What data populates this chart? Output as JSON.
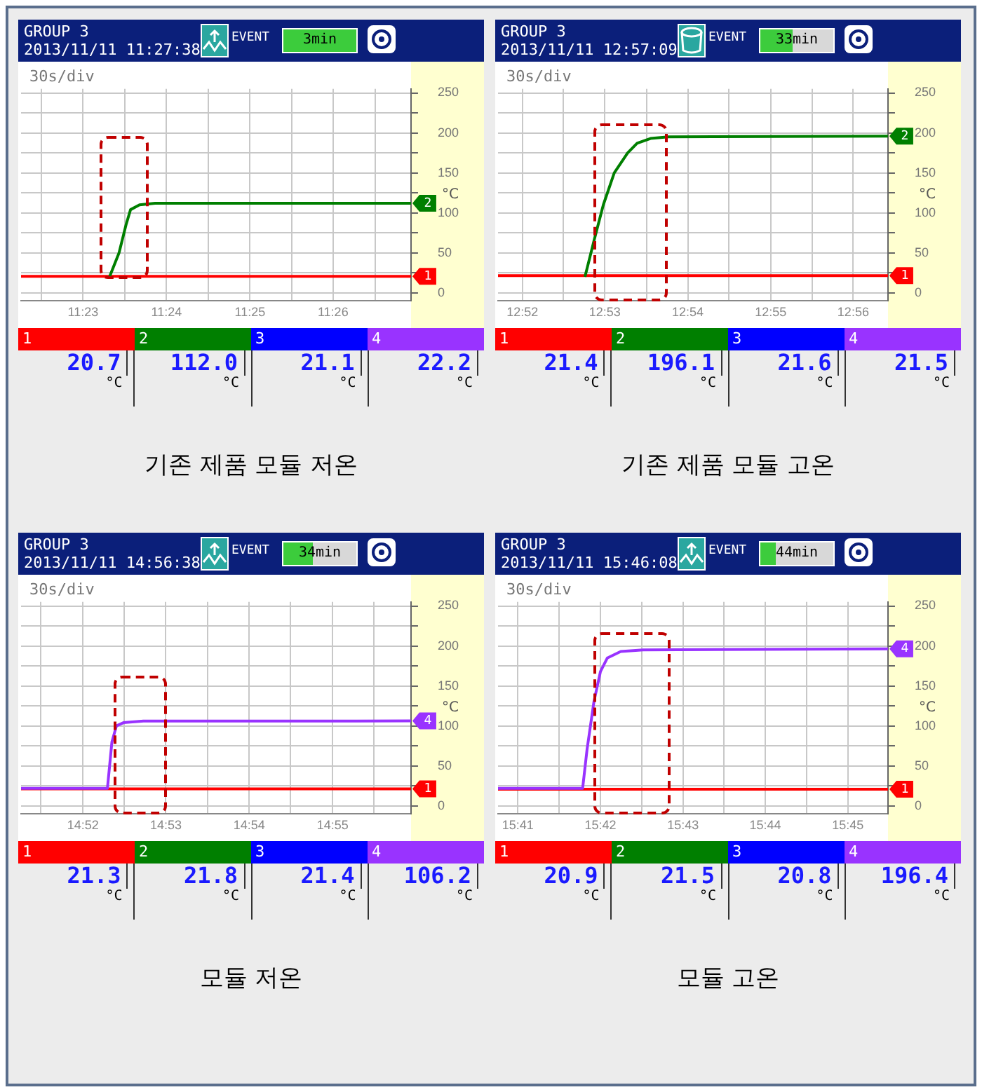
{
  "chart_data": [
    {
      "type": "line",
      "title": "기존 제품 모듈 저온",
      "ylabel": "°C",
      "grid": true,
      "marker": "none",
      "annotations": [
        "GROUP 3",
        "2013/11/11 11:27:38",
        "EVENT",
        "3min",
        "30s/div",
        "20.7",
        "112.0",
        "21.1",
        "22.2",
        "1",
        "2",
        "3",
        "4"
      ],
      "xlim": [
        11.3709,
        11.4489
      ],
      "xticks": [
        {
          "value": 11.375,
          "label": null
        },
        {
          "value": 11.3833,
          "label": "11:23"
        },
        {
          "value": 11.3917,
          "label": null
        },
        {
          "value": 11.4,
          "label": "11:24"
        },
        {
          "value": 11.4083,
          "label": null
        },
        {
          "value": 11.4167,
          "label": "11:25"
        },
        {
          "value": 11.425,
          "label": null
        },
        {
          "value": 11.4333,
          "label": "11:26"
        },
        {
          "value": 11.4417,
          "label": null
        }
      ],
      "ylim": [
        -10,
        255
      ],
      "yticks": [
        0,
        {
          "value": 25,
          "label": null
        },
        50,
        {
          "value": 75,
          "label": null
        },
        100,
        {
          "value": 125,
          "label": null
        },
        150,
        {
          "value": 175,
          "label": null
        },
        200,
        {
          "value": 225,
          "label": null
        },
        250
      ],
      "series": [
        {
          "name": "1",
          "color": "#ff0000",
          "x": [
            11.3709,
            11.4489
          ],
          "values": [
            20.7,
            20.7
          ]
        },
        {
          "name": "2",
          "color": "#007f00",
          "x": [
            11.3886,
            11.3905,
            11.3919,
            11.3928,
            11.3946,
            11.3977,
            11.4489
          ],
          "values": [
            20,
            50,
            85,
            104,
            110,
            112,
            112
          ]
        }
      ]
    },
    {
      "type": "line",
      "title": "기존 제품 모듈 고온",
      "ylabel": "°C",
      "grid": true,
      "marker": "none",
      "annotations": [
        "GROUP 3",
        "2013/11/11 12:57:09",
        "EVENT",
        "33min",
        "30s/div",
        "21.4",
        "196.1",
        "21.6",
        "21.5",
        "1",
        "2",
        "3",
        "4"
      ],
      "xlim": [
        12.8618,
        12.9403
      ],
      "xticks": [
        {
          "value": 12.8667,
          "label": "12:52"
        },
        {
          "value": 12.875,
          "label": null
        },
        {
          "value": 12.8833,
          "label": "12:53"
        },
        {
          "value": 12.8917,
          "label": null
        },
        {
          "value": 12.9,
          "label": "12:54"
        },
        {
          "value": 12.9083,
          "label": null
        },
        {
          "value": 12.9167,
          "label": "12:55"
        },
        {
          "value": 12.925,
          "label": null
        },
        {
          "value": 12.9333,
          "label": "12:56"
        }
      ],
      "ylim": [
        -10,
        255
      ],
      "yticks": [
        0,
        {
          "value": 25,
          "label": null
        },
        50,
        {
          "value": 75,
          "label": null
        },
        100,
        {
          "value": 125,
          "label": null
        },
        150,
        {
          "value": 175,
          "label": null
        },
        200,
        {
          "value": 225,
          "label": null
        },
        250
      ],
      "series": [
        {
          "name": "1",
          "color": "#ff0000",
          "x": [
            12.8618,
            12.9403
          ],
          "values": [
            21.4,
            21.4
          ]
        },
        {
          "name": "2",
          "color": "#007f00",
          "x": [
            12.8793,
            12.8812,
            12.883,
            12.8852,
            12.8879,
            12.8898,
            12.8925,
            12.8961,
            12.9403
          ],
          "values": [
            20,
            67,
            110,
            150,
            175,
            187,
            193,
            195,
            196
          ]
        }
      ]
    },
    {
      "type": "line",
      "title": "모듈 저온",
      "ylabel": "°C",
      "grid": true,
      "marker": "none",
      "annotations": [
        "GROUP 3",
        "2013/11/11 14:56:38",
        "EVENT",
        "34min",
        "30s/div",
        "21.3",
        "21.8",
        "21.4",
        "106.2",
        "1",
        "2",
        "3",
        "4"
      ],
      "xlim": [
        14.8543,
        14.9324
      ],
      "xticks": [
        {
          "value": 14.8583,
          "label": null
        },
        {
          "value": 14.8667,
          "label": "14:52"
        },
        {
          "value": 14.875,
          "label": null
        },
        {
          "value": 14.8833,
          "label": "14:53"
        },
        {
          "value": 14.8917,
          "label": null
        },
        {
          "value": 14.9,
          "label": "14:54"
        },
        {
          "value": 14.9083,
          "label": null
        },
        {
          "value": 14.9167,
          "label": "14:55"
        },
        {
          "value": 14.925,
          "label": null
        }
      ],
      "ylim": [
        -10,
        255
      ],
      "yticks": [
        0,
        {
          "value": 25,
          "label": null
        },
        50,
        {
          "value": 75,
          "label": null
        },
        100,
        {
          "value": 125,
          "label": null
        },
        150,
        {
          "value": 175,
          "label": null
        },
        200,
        {
          "value": 225,
          "label": null
        },
        250
      ],
      "series": [
        {
          "name": "1",
          "color": "#ff0000",
          "x": [
            14.8543,
            14.9324
          ],
          "values": [
            21.3,
            21.3
          ]
        },
        {
          "name": "4",
          "color": "#9933ff",
          "x": [
            14.8543,
            14.8716,
            14.8725,
            14.8734,
            14.8748,
            14.8788,
            14.9324
          ],
          "values": [
            22,
            22,
            80,
            100,
            104,
            106,
            106.2
          ]
        }
      ]
    },
    {
      "type": "line",
      "title": "모듈 고온",
      "ylabel": "°C",
      "grid": true,
      "marker": "none",
      "annotations": [
        "GROUP 3",
        "2013/11/11 15:46:08",
        "EVENT",
        "44min",
        "30s/div",
        "20.9",
        "21.5",
        "20.8",
        "196.4",
        "1",
        "2",
        "3",
        "4"
      ],
      "xlim": [
        15.6793,
        15.7581
      ],
      "xticks": [
        {
          "value": 15.6833,
          "label": "15:41"
        },
        {
          "value": 15.6917,
          "label": null
        },
        {
          "value": 15.7,
          "label": "15:42"
        },
        {
          "value": 15.7083,
          "label": null
        },
        {
          "value": 15.7167,
          "label": "15:43"
        },
        {
          "value": 15.725,
          "label": null
        },
        {
          "value": 15.7333,
          "label": "15:44"
        },
        {
          "value": 15.7417,
          "label": null
        },
        {
          "value": 15.75,
          "label": "15:45"
        }
      ],
      "ylim": [
        -10,
        255
      ],
      "yticks": [
        0,
        {
          "value": 25,
          "label": null
        },
        50,
        {
          "value": 75,
          "label": null
        },
        100,
        {
          "value": 125,
          "label": null
        },
        150,
        {
          "value": 175,
          "label": null
        },
        200,
        {
          "value": 225,
          "label": null
        },
        250
      ],
      "series": [
        {
          "name": "1",
          "color": "#ff0000",
          "x": [
            15.6793,
            15.7581
          ],
          "values": [
            20.9,
            20.9
          ]
        },
        {
          "name": "4",
          "color": "#9933ff",
          "x": [
            15.6793,
            15.6964,
            15.6973,
            15.6987,
            15.7,
            15.7014,
            15.7041,
            15.7086,
            15.7581
          ],
          "values": [
            22,
            22,
            71,
            131,
            168,
            185,
            193,
            195,
            196.4
          ]
        }
      ]
    }
  ]
}
